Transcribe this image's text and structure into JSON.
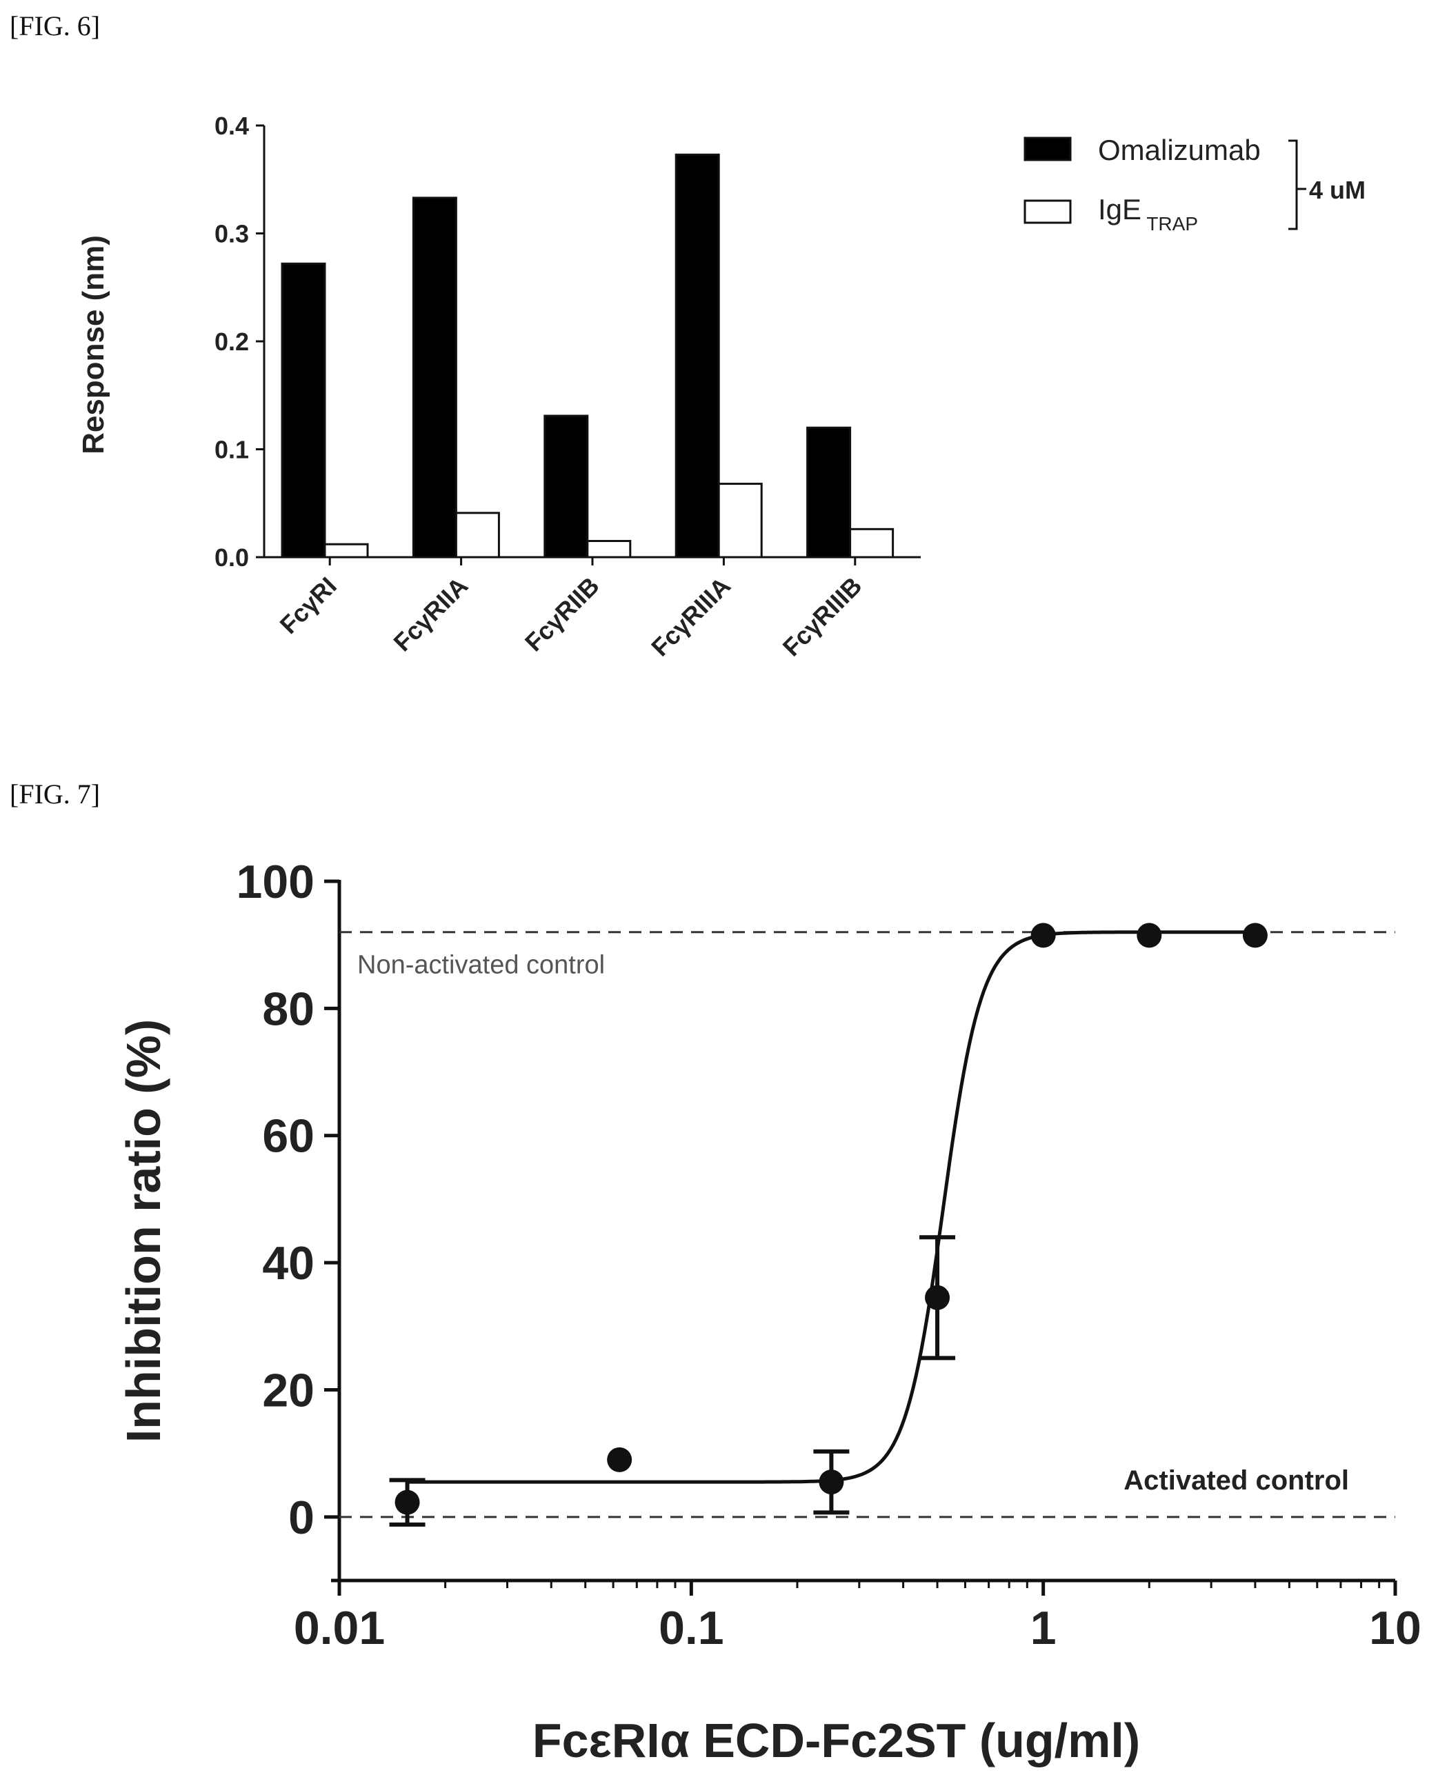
{
  "figures": {
    "fig6_label": "[FIG. 6]",
    "fig7_label": "[FIG. 7]"
  },
  "chart_data": [
    {
      "type": "bar",
      "ylabel": "Response (nm)",
      "ylim": [
        0,
        0.4
      ],
      "yticks": [
        "0.0",
        "0.1",
        "0.2",
        "0.3",
        "0.4"
      ],
      "categories": [
        "FcγRI",
        "FcγRIIA",
        "FcγRIIB",
        "FcγRIIIA",
        "FcγRIIIB"
      ],
      "series": [
        {
          "name": "Omalizumab",
          "values": [
            0.272,
            0.333,
            0.131,
            0.373,
            0.12
          ],
          "color": "#000000"
        },
        {
          "name": "IgE",
          "name_subscript": "TRAP",
          "values": [
            0.012,
            0.041,
            0.015,
            0.068,
            0.026
          ],
          "color": "#ffffff"
        }
      ],
      "legend_bracket_label": "4 uM",
      "legend": "top-right",
      "grid": false
    },
    {
      "type": "scatter",
      "xlabel": "FcεRIα ECD-Fc2ST (ug/ml)",
      "ylabel": "Inhibition ratio (%)",
      "xscale": "log",
      "xlim": [
        0.01,
        10
      ],
      "ylim": [
        -10,
        100
      ],
      "xticks": [
        "0.01",
        "0.1",
        "1",
        "10"
      ],
      "yticks": [
        "0",
        "20",
        "40",
        "60",
        "80",
        "100"
      ],
      "points": [
        {
          "x": 0.0156,
          "y": 2.3,
          "err": 3.5
        },
        {
          "x": 0.0625,
          "y": 9.0,
          "err": 0
        },
        {
          "x": 0.25,
          "y": 5.5,
          "err": 4.8
        },
        {
          "x": 0.5,
          "y": 34.5,
          "err": 9.5
        },
        {
          "x": 1.0,
          "y": 91.5,
          "err": 0
        },
        {
          "x": 2.0,
          "y": 91.5,
          "err": 0
        },
        {
          "x": 4.0,
          "y": 91.5,
          "err": 0
        }
      ],
      "fit": {
        "bottom": 5.5,
        "top": 92.0,
        "ec50": 0.52,
        "hill": 8
      },
      "reference_lines": [
        {
          "label": "Non-activated control",
          "y": 92
        },
        {
          "label": "Activated control",
          "y": 0
        }
      ],
      "grid": false
    }
  ]
}
